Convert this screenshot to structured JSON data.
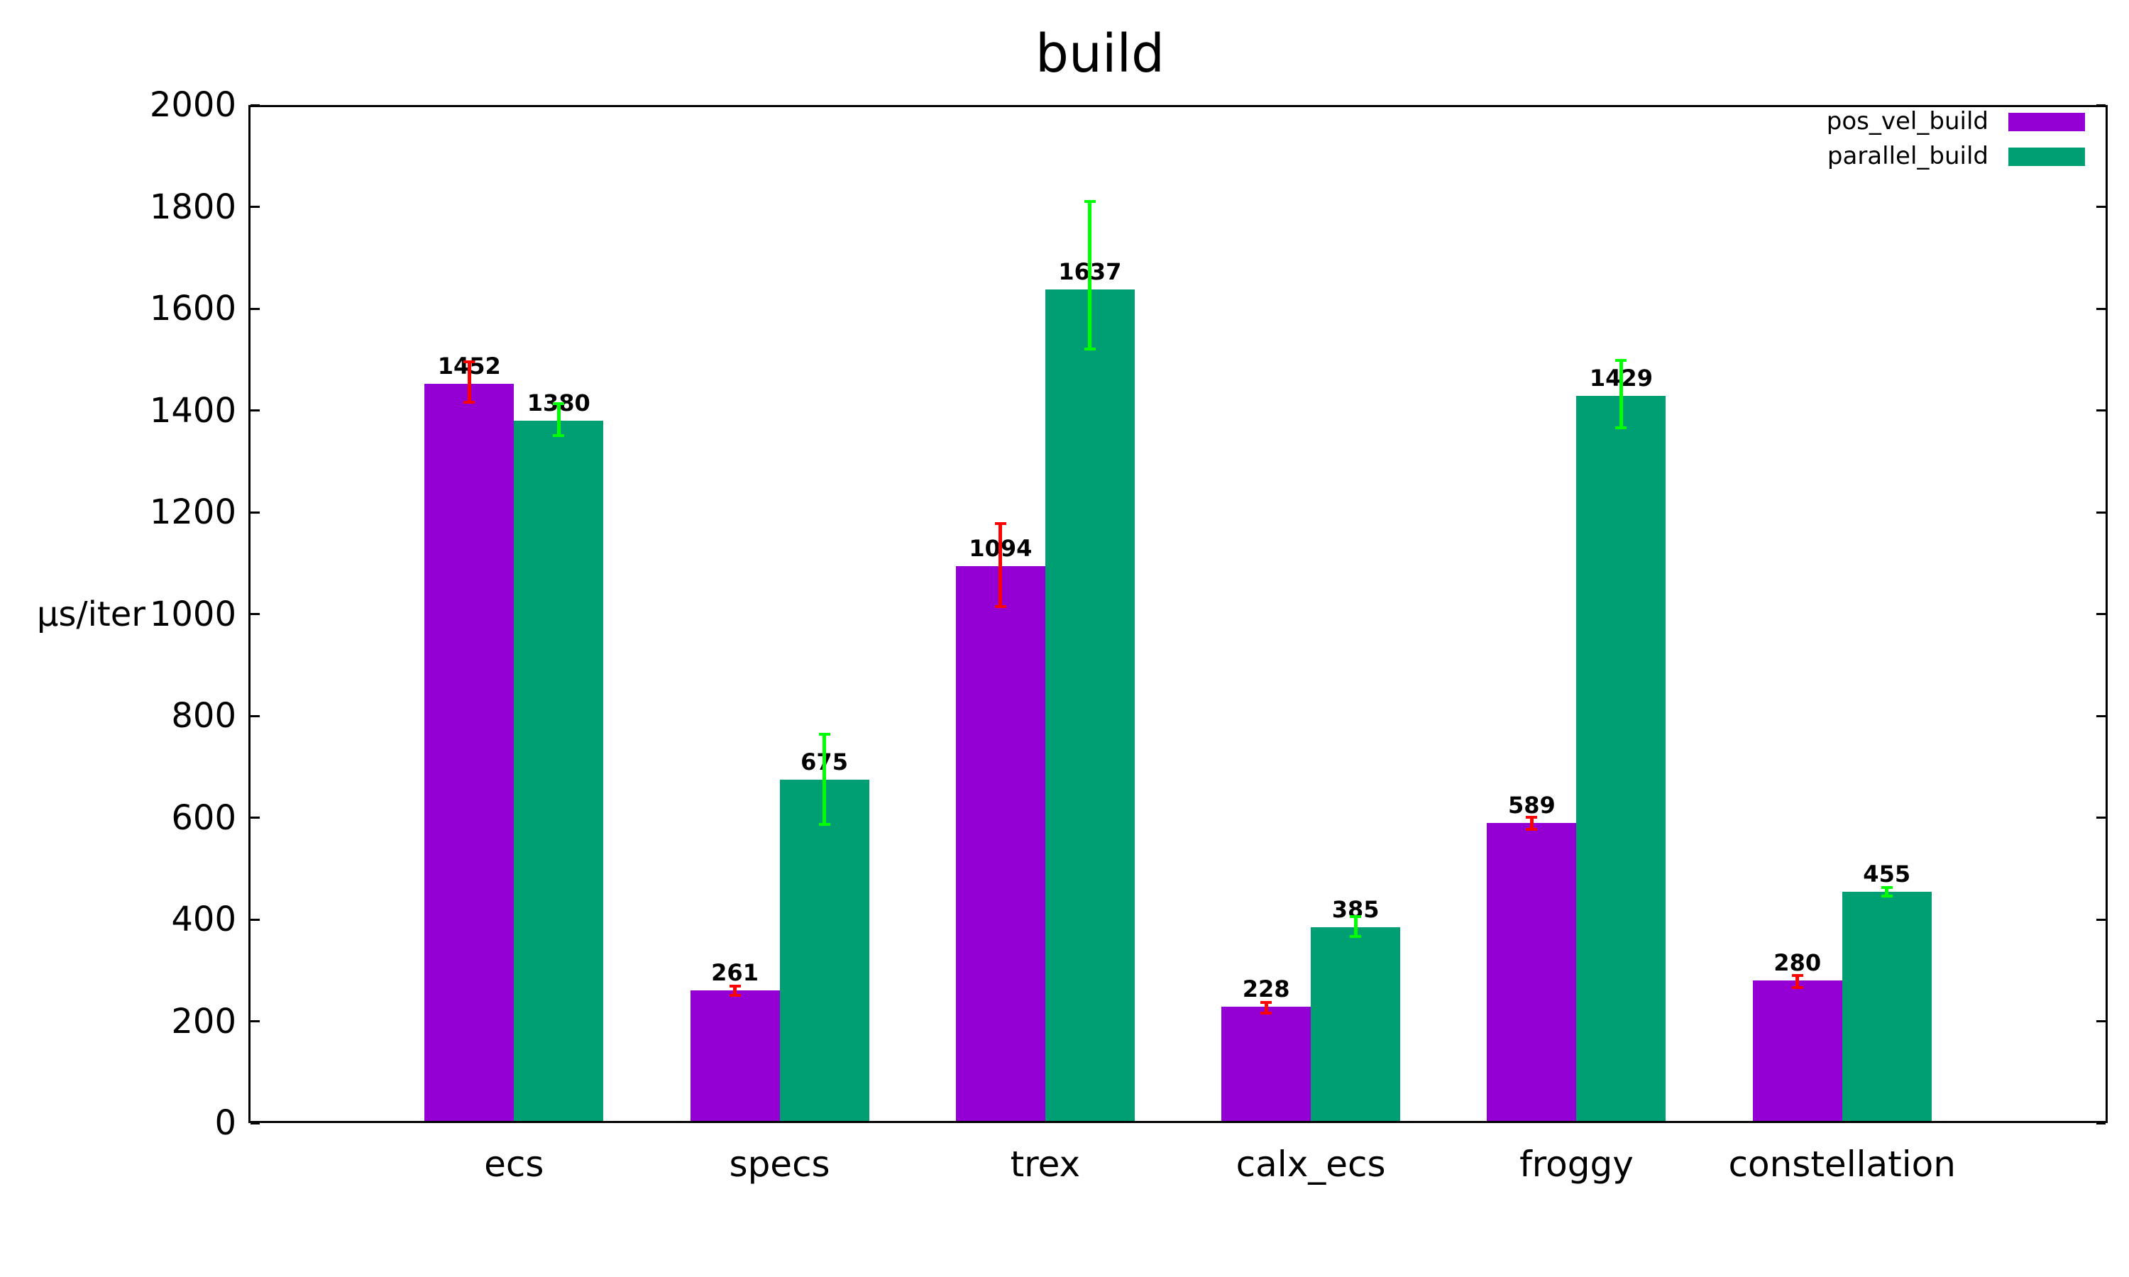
{
  "title": "build",
  "y_axis_label": "µs/iter",
  "legend": {
    "items": [
      {
        "label": "pos_vel_build",
        "color": "#9400d3"
      },
      {
        "label": "parallel_build",
        "color": "#009e73"
      }
    ]
  },
  "chart_data": {
    "type": "bar",
    "title": "build",
    "xlabel": "",
    "ylabel": "µs/iter",
    "ylim": [
      0,
      2000
    ],
    "ytick_step": 200,
    "yticks": [
      0,
      200,
      400,
      600,
      800,
      1000,
      1200,
      1400,
      1600,
      1800,
      2000
    ],
    "grid": false,
    "legend_position": "top-right-inside",
    "categories": [
      "ecs",
      "specs",
      "trex",
      "calx_ecs",
      "froggy",
      "constellation"
    ],
    "series": [
      {
        "name": "pos_vel_build",
        "color": "#9400d3",
        "error_color": "#ff0000",
        "values": [
          1452,
          261,
          1094,
          228,
          589,
          280
        ],
        "error_low": [
          1416,
          251,
          1015,
          216,
          577,
          266
        ],
        "error_high": [
          1496,
          269,
          1178,
          237,
          601,
          290
        ]
      },
      {
        "name": "parallel_build",
        "color": "#009e73",
        "error_color": "#00ff00",
        "values": [
          1380,
          675,
          1637,
          385,
          1429,
          455
        ],
        "error_low": [
          1350,
          587,
          1520,
          367,
          1366,
          446
        ],
        "error_high": [
          1413,
          764,
          1810,
          406,
          1498,
          463
        ]
      }
    ]
  }
}
